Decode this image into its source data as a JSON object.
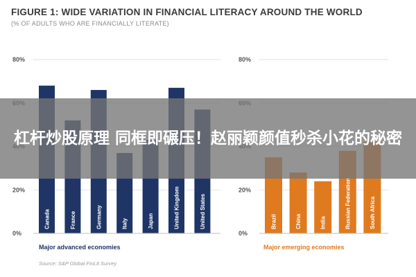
{
  "header": {
    "title": "FIGURE 1: WIDE VARIATION IN FINANCIAL LITERACY AROUND THE WORLD",
    "subtitle": "(% OF ADULTS WHO ARE FINANCIALLY LITERATE)"
  },
  "groups": {
    "left_label": "Major advanced economies",
    "right_label": "Major emerging economies"
  },
  "source": "Source: S&P Global FinLit Survey",
  "overlay": {
    "text": "杠杆炒股原理 同框即碾压！赵丽颖颜值秒杀小花的秘密"
  },
  "colors": {
    "advanced": "#1f3566",
    "emerging": "#e07a1f",
    "overlay": "#767676"
  },
  "chart_data": [
    {
      "type": "bar",
      "categories": [
        "Canada",
        "France",
        "Germany",
        "Italy",
        "Japan",
        "United Kingdom",
        "United States"
      ],
      "values": [
        68,
        52,
        66,
        37,
        43,
        67,
        57
      ],
      "ylim": [
        0,
        80
      ],
      "yticks": [
        "0%",
        "20%",
        "40%",
        "60%",
        "80%"
      ],
      "color": "#1f3566",
      "group_label": "Major advanced economies"
    },
    {
      "type": "bar",
      "categories": [
        "Brazil",
        "China",
        "India",
        "Russian Federation",
        "South Africa"
      ],
      "values": [
        35,
        28,
        24,
        38,
        42
      ],
      "ylim": [
        0,
        80
      ],
      "yticks": [
        "0%",
        "20%",
        "40%",
        "60%",
        "80%"
      ],
      "color": "#e07a1f",
      "group_label": "Major emerging economies"
    }
  ]
}
